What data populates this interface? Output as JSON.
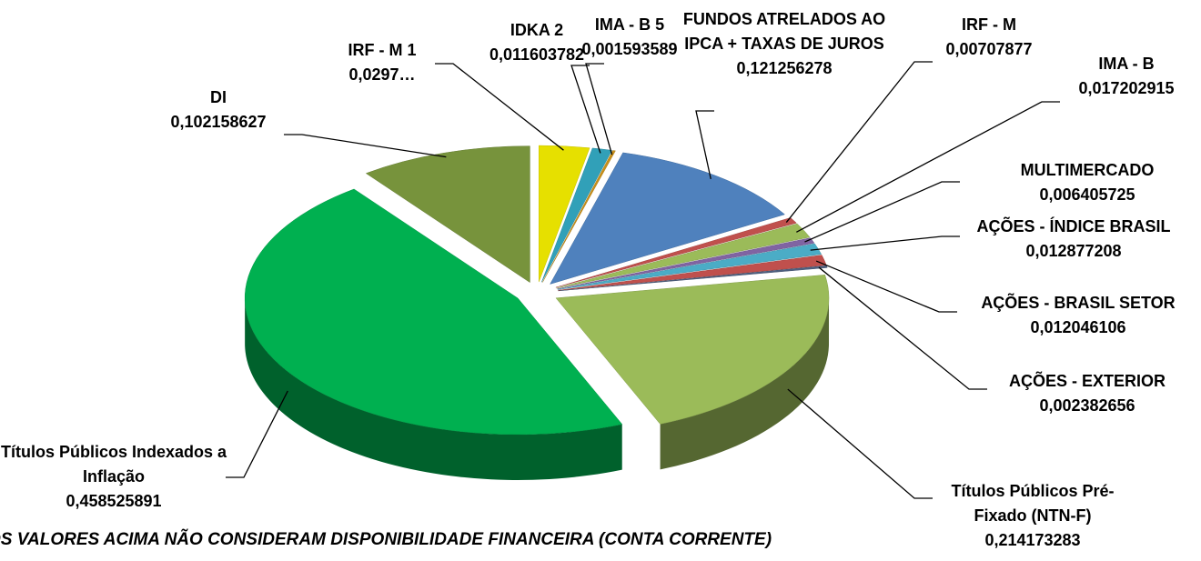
{
  "chart_data": {
    "type": "pie",
    "categories": [
      "IRF - M 1",
      "IDKA 2",
      "IMA - B 5",
      "FUNDOS ATRELADOS AO IPCA + TAXAS DE JUROS",
      "IRF - M",
      "IMA - B",
      "MULTIMERCADO",
      "AÇÕES - ÍNDICE BRASIL",
      "AÇÕES - BRASIL SETOR",
      "AÇÕES - EXTERIOR",
      "Títulos Públicos Pré-Fixado (NTN-F)",
      "Títulos Públicos Indexados a Inflação",
      "DI"
    ],
    "values": [
      0.0297,
      0.011603782,
      0.001593589,
      0.121256278,
      0.00707877,
      0.017202915,
      0.006405725,
      0.012877208,
      0.012046106,
      0.002382656,
      0.214173283,
      0.458525891,
      0.102158627
    ],
    "value_labels": [
      "0,0297…",
      "0,011603782",
      "0,001593589",
      "0,121256278",
      "0,00707877",
      "0,017202915",
      "0,006405725",
      "0,012877208",
      "0,012046106",
      "0,002382656",
      "0,214173283",
      "0,458525891",
      "0,102158627"
    ],
    "colors": [
      "#e6e000",
      "#31a0b8",
      "#c8901a",
      "#4f81bd",
      "#c0504d",
      "#9bbb59",
      "#8064a2",
      "#4bacc6",
      "#c0504d",
      "#4f6080",
      "#9bbb59",
      "#00b050",
      "#77933c"
    ],
    "note": "OS VALORES ACIMA NÃO CONSIDERAM DISPONIBILIDADE FINANCEIRA (CONTA CORRENTE)"
  }
}
